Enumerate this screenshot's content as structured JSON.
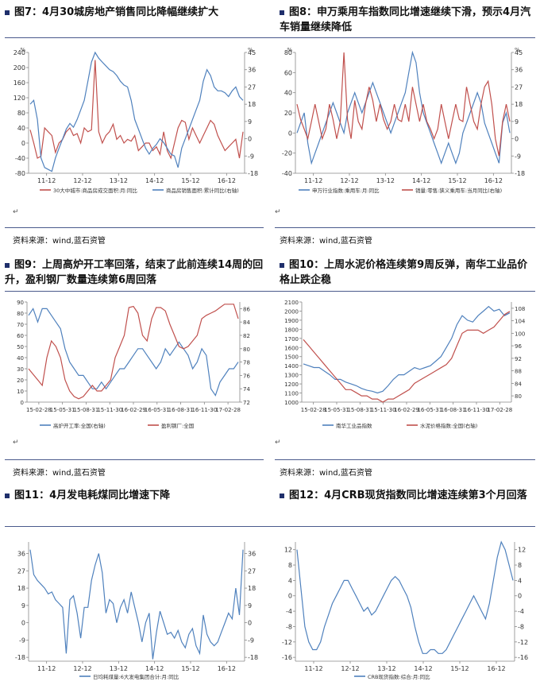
{
  "page": {
    "sources": [
      "资料来源：wind,蓝石资管",
      "资料来源：wind,蓝石资管",
      "资料来源：wind,蓝石资管",
      "资料来源：wind,蓝石资管"
    ],
    "paragraph_mark": "↵"
  },
  "charts": [
    {
      "title": "图7：4月30城房地产销售同比降幅继续扩大",
      "unit_left": "%",
      "unit_right": "%",
      "chart_data": {
        "type": "line",
        "x_ticks": [
          "11-12",
          "12-12",
          "13-12",
          "14-12",
          "15-12",
          "16-12"
        ],
        "y_left": {
          "ticks": [
            -80,
            -40,
            0,
            40,
            80,
            120,
            160,
            200,
            240
          ],
          "range": [
            -80,
            240
          ]
        },
        "y_right": {
          "ticks": [
            -18,
            -9,
            0,
            9,
            18,
            27,
            36,
            45
          ],
          "range": [
            -18,
            45
          ]
        },
        "series": [
          {
            "name": "30大中城市:商品房成交面积:月:同比",
            "axis": "left",
            "color": "#c0504d",
            "values": [
              35,
              0,
              -40,
              -35,
              40,
              30,
              20,
              -25,
              0,
              10,
              30,
              40,
              20,
              25,
              0,
              40,
              30,
              35,
              220,
              30,
              0,
              20,
              30,
              50,
              10,
              20,
              0,
              10,
              5,
              20,
              -20,
              -10,
              0,
              0,
              -20,
              -10,
              -30,
              30,
              -20,
              -40,
              0,
              40,
              60,
              55,
              10,
              40,
              20,
              0,
              20,
              40,
              60,
              50,
              20,
              0,
              -20,
              -10,
              0,
              10,
              -40,
              30
            ]
          },
          {
            "name": "商品房销售面积:累计同比(右轴)",
            "axis": "right",
            "color": "#4f81bd",
            "values": [
              18,
              20,
              10,
              -10,
              -15,
              -16,
              -17,
              -10,
              -5,
              0,
              5,
              8,
              6,
              10,
              15,
              20,
              30,
              40,
              45,
              42,
              40,
              38,
              36,
              35,
              33,
              30,
              28,
              27,
              20,
              10,
              5,
              0,
              -5,
              -8,
              -5,
              -3,
              0,
              -2,
              -5,
              -8,
              -9,
              -15,
              -5,
              0,
              5,
              10,
              15,
              20,
              30,
              36,
              33,
              27,
              25,
              25,
              24,
              22,
              25,
              27,
              22,
              20
            ]
          }
        ]
      }
    },
    {
      "title": "图8：申万乘用车指数同比增速继续下滑，预示4月汽车销量继续降低",
      "unit_left": "%",
      "unit_right": "%",
      "chart_data": {
        "type": "line",
        "x_ticks": [
          "11-12",
          "12-12",
          "13-12",
          "14-12",
          "15-12",
          "16-12"
        ],
        "y_left": {
          "ticks": [
            -40,
            -20,
            0,
            20,
            40,
            60,
            80
          ],
          "range": [
            -40,
            80
          ]
        },
        "y_right": {
          "ticks": [
            -18,
            -9,
            0,
            9,
            18,
            27,
            36,
            45
          ],
          "range": [
            -18,
            45
          ]
        },
        "series": [
          {
            "name": "申万行业指数:乘用车:月:同比",
            "axis": "left",
            "color": "#4f81bd",
            "values": [
              0,
              10,
              20,
              -10,
              -30,
              -20,
              -10,
              0,
              10,
              20,
              30,
              20,
              10,
              0,
              20,
              30,
              40,
              30,
              20,
              30,
              40,
              50,
              40,
              30,
              20,
              10,
              0,
              10,
              20,
              30,
              40,
              60,
              80,
              70,
              40,
              20,
              10,
              0,
              -10,
              -20,
              -30,
              -20,
              -10,
              -20,
              -30,
              -20,
              0,
              10,
              20,
              30,
              40,
              30,
              10,
              0,
              -10,
              -20,
              -30,
              10,
              20,
              0
            ]
          },
          {
            "name": "销量:零售:狭义乘用车:当月同比(右轴)",
            "axis": "right",
            "color": "#c0504d",
            "values": [
              18,
              10,
              5,
              0,
              9,
              18,
              9,
              0,
              5,
              18,
              10,
              0,
              9,
              45,
              10,
              0,
              20,
              9,
              5,
              18,
              27,
              20,
              9,
              18,
              10,
              5,
              9,
              18,
              10,
              9,
              18,
              9,
              27,
              18,
              9,
              18,
              9,
              5,
              0,
              5,
              18,
              9,
              0,
              9,
              18,
              10,
              9,
              27,
              18,
              9,
              5,
              18,
              27,
              30,
              18,
              0,
              -9,
              9,
              18,
              9
            ]
          }
        ]
      }
    },
    {
      "title": "图9：上周高炉开工率回落，结束了此前连续14周的回升，盈利钢厂数量连续第6周回落",
      "chart_data": {
        "type": "line",
        "x_ticks": [
          "15-02-28",
          "15-05-31",
          "15-08-31",
          "15-11-30",
          "16-02-29",
          "16-05-31",
          "16-08-31",
          "16-11-30",
          "17-02-28"
        ],
        "y_left": {
          "ticks": [
            0,
            10,
            20,
            30,
            40,
            50,
            60,
            70,
            80,
            90
          ],
          "range": [
            0,
            90
          ]
        },
        "y_right": {
          "ticks": [
            72,
            74,
            76,
            78,
            80,
            82,
            84,
            86
          ],
          "range": [
            72,
            87
          ]
        },
        "series": [
          {
            "name": "高炉开工率:全国(右轴)",
            "axis": "right",
            "color": "#4f81bd",
            "values": [
              85,
              86,
              84,
              86,
              86,
              85,
              84,
              83,
              80,
              78,
              77,
              76,
              76,
              75,
              74,
              74,
              75,
              74,
              75,
              76,
              77,
              77,
              78,
              79,
              80,
              80,
              79,
              78,
              77,
              78,
              80,
              79,
              80,
              81,
              80,
              79,
              77,
              78,
              80,
              79,
              74,
              73,
              75,
              76,
              77,
              77,
              78
            ]
          },
          {
            "name": "盈利钢厂:全国",
            "axis": "left",
            "color": "#c0504d",
            "values": [
              30,
              25,
              20,
              15,
              40,
              55,
              50,
              40,
              20,
              10,
              5,
              3,
              5,
              10,
              15,
              10,
              10,
              15,
              20,
              40,
              50,
              60,
              85,
              86,
              80,
              60,
              55,
              75,
              85,
              85,
              82,
              70,
              60,
              50,
              48,
              50,
              55,
              60,
              75,
              78,
              80,
              82,
              85,
              88,
              88,
              88,
              75
            ]
          }
        ]
      }
    },
    {
      "title": "图10：上周水泥价格连续第9周反弹，南华工业品价格止跌企稳",
      "chart_data": {
        "type": "line",
        "x_ticks": [
          "15-02-28",
          "15-05-31",
          "15-08-31",
          "15-11-30",
          "16-02-29",
          "16-05-31",
          "16-08-31",
          "16-11-30",
          "17-02-28"
        ],
        "y_left": {
          "ticks": [
            1000,
            1100,
            1200,
            1300,
            1400,
            1500,
            1600,
            1700,
            1800,
            1900,
            2000,
            2100
          ],
          "range": [
            1000,
            2100
          ]
        },
        "y_right": {
          "ticks": [
            80,
            84,
            88,
            92,
            96,
            100,
            104,
            108
          ],
          "range": [
            78,
            110
          ]
        },
        "series": [
          {
            "name": "南华工业品指数",
            "axis": "left",
            "color": "#4f81bd",
            "values": [
              1420,
              1400,
              1380,
              1380,
              1340,
              1300,
              1250,
              1250,
              1220,
              1200,
              1180,
              1150,
              1130,
              1120,
              1100,
              1120,
              1180,
              1250,
              1300,
              1300,
              1340,
              1380,
              1360,
              1380,
              1400,
              1450,
              1500,
              1600,
              1700,
              1850,
              1950,
              1900,
              1880,
              1950,
              2000,
              2050,
              2000,
              2020,
              1950,
              1980
            ]
          },
          {
            "name": "水泥价格指数:全国(右轴)",
            "axis": "right",
            "color": "#c0504d",
            "values": [
              98,
              96,
              94,
              92,
              90,
              88,
              86,
              84,
              82,
              82,
              81,
              80,
              80,
              79,
              79,
              78,
              79,
              79,
              80,
              81,
              82,
              84,
              85,
              86,
              87,
              88,
              89,
              90,
              92,
              96,
              100,
              101,
              101,
              101,
              100,
              101,
              102,
              104,
              106,
              107
            ]
          }
        ]
      }
    },
    {
      "title": "图11：4月发电耗煤同比增速下降",
      "chart_data": {
        "type": "line",
        "x_ticks": [
          "11-12",
          "12-12",
          "13-12",
          "14-12",
          "15-12",
          "16-12"
        ],
        "y_left": {
          "ticks": [
            -18,
            -9,
            0,
            9,
            18,
            27,
            36
          ],
          "range": [
            -20,
            42
          ]
        },
        "y_right": {
          "ticks": [
            -18,
            -9,
            0,
            9,
            18,
            27,
            36
          ],
          "range": [
            -20,
            42
          ]
        },
        "series": [
          {
            "name": "日均耗煤量:6大发电集团合计:月:同比",
            "axis": "left",
            "color": "#4f81bd",
            "values": [
              38,
              25,
              22,
              20,
              18,
              15,
              16,
              12,
              10,
              8,
              -16,
              12,
              14,
              5,
              -8,
              8,
              8,
              22,
              30,
              36,
              26,
              5,
              12,
              10,
              0,
              8,
              12,
              5,
              16,
              8,
              0,
              -10,
              0,
              5,
              -19,
              -5,
              6,
              0,
              -6,
              -5,
              -8,
              -4,
              -10,
              -13,
              -6,
              -3,
              -12,
              -16,
              4,
              -6,
              -10,
              -12,
              -10,
              -5,
              0,
              5,
              2,
              18,
              4,
              38
            ]
          }
        ]
      }
    },
    {
      "title": "图12：4月CRB现货指数同比增速连续第3个月回落",
      "chart_data": {
        "type": "line",
        "x_ticks": [
          "11-12",
          "12-12",
          "13-12",
          "14-12",
          "15-12",
          "16-12"
        ],
        "y_left": {
          "ticks": [
            -16,
            -12,
            -8,
            -4,
            0,
            4,
            8,
            12
          ],
          "range": [
            -17,
            14
          ]
        },
        "y_right": {
          "ticks": [
            -16,
            -12,
            -8,
            -4,
            0,
            4,
            8,
            12
          ],
          "range": [
            -17,
            14
          ]
        },
        "series": [
          {
            "name": "CRB现货指数:综合:月:同比",
            "axis": "left",
            "color": "#4f81bd",
            "values": [
              12,
              2,
              -8,
              -12,
              -14,
              -14,
              -12,
              -8,
              -5,
              -2,
              0,
              2,
              4,
              4,
              2,
              0,
              -2,
              -4,
              -3,
              -5,
              -4,
              -2,
              0,
              2,
              4,
              5,
              4,
              2,
              0,
              -3,
              -8,
              -12,
              -15,
              -15,
              -14,
              -14,
              -15,
              -15,
              -14,
              -12,
              -10,
              -8,
              -6,
              -4,
              -2,
              0,
              -2,
              -4,
              -6,
              -2,
              4,
              10,
              14,
              12,
              8,
              4
            ]
          }
        ]
      }
    }
  ]
}
